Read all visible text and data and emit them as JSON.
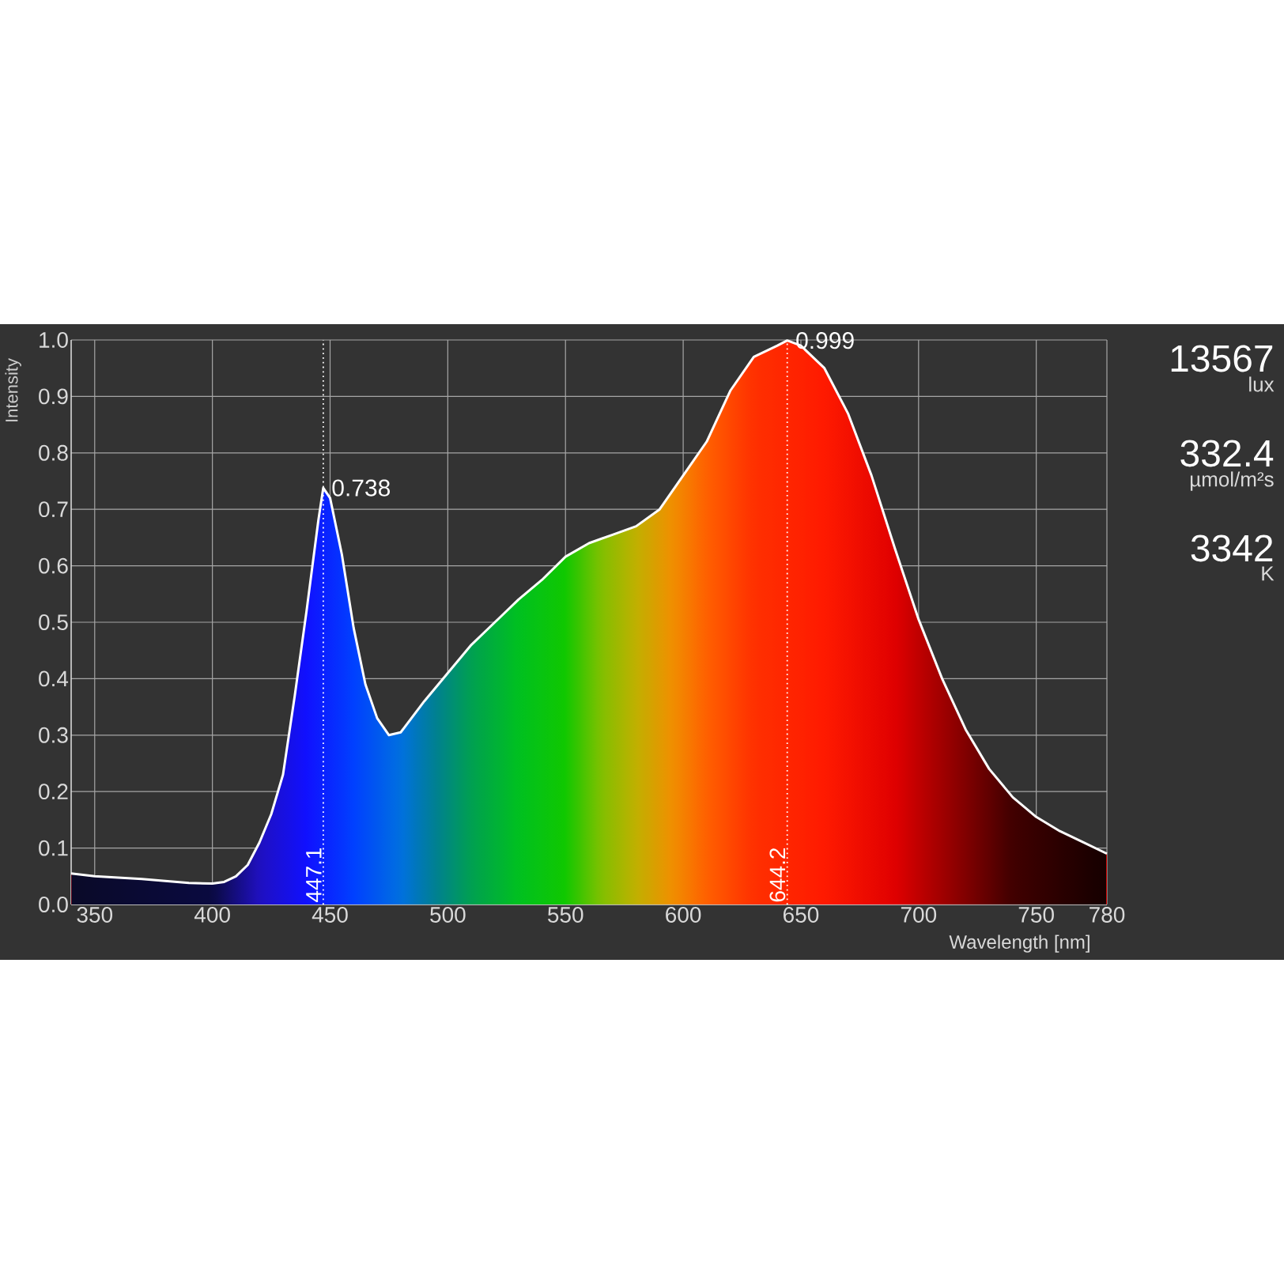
{
  "chart_data": {
    "type": "area",
    "xlabel": "Wavelength [nm]",
    "ylabel": "Intensity",
    "color": "#ffffff",
    "x": [
      340,
      350,
      370,
      390,
      400,
      405,
      410,
      415,
      420,
      425,
      430,
      435,
      440,
      445,
      447.1,
      450,
      455,
      460,
      465,
      470,
      475,
      480,
      490,
      500,
      510,
      520,
      530,
      540,
      550,
      560,
      570,
      580,
      590,
      600,
      610,
      620,
      630,
      640,
      644.2,
      650,
      660,
      670,
      680,
      690,
      700,
      710,
      720,
      730,
      740,
      750,
      760,
      770,
      780
    ],
    "values": [
      0.055,
      0.05,
      0.045,
      0.038,
      0.037,
      0.04,
      0.05,
      0.07,
      0.11,
      0.16,
      0.23,
      0.37,
      0.52,
      0.68,
      0.738,
      0.72,
      0.62,
      0.49,
      0.39,
      0.33,
      0.3,
      0.305,
      0.36,
      0.41,
      0.46,
      0.5,
      0.54,
      0.575,
      0.616,
      0.64,
      0.655,
      0.67,
      0.7,
      0.76,
      0.82,
      0.91,
      0.97,
      0.99,
      0.999,
      0.99,
      0.95,
      0.87,
      0.76,
      0.63,
      0.505,
      0.4,
      0.31,
      0.24,
      0.19,
      0.155,
      0.13,
      0.11,
      0.09
    ],
    "xlim": [
      340,
      780
    ],
    "ylim": [
      0,
      1
    ],
    "xticks": [
      350,
      400,
      450,
      500,
      550,
      600,
      650,
      700,
      750,
      780
    ],
    "yticks": [
      {
        "value": 0,
        "label": "0.0"
      },
      0.1,
      0.2,
      0.3,
      0.4,
      0.5,
      0.6,
      0.7,
      0.8,
      0.9,
      {
        "value": 1,
        "label": "1.0"
      }
    ],
    "grid": true,
    "ref_lines": [
      {
        "axis": "x",
        "value": 447.1,
        "label": "447.1",
        "color": "#ffffff",
        "line_style": "dotted"
      },
      {
        "axis": "x",
        "value": 644.2,
        "label": "644.2",
        "color": "#ffffff",
        "line_style": "dotted"
      }
    ],
    "annotations": [
      {
        "text": "0.738",
        "x": 447.1,
        "y": 0.738
      },
      {
        "text": "0.999",
        "x": 644.2,
        "y": 0.999
      },
      "13567",
      "lux",
      "332.4",
      "µmol/m²s",
      "3342",
      "K"
    ]
  }
}
